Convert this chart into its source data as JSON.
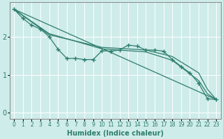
{
  "xlabel": "Humidex (Indice chaleur)",
  "bg_color": "#ceecea",
  "grid_color": "#ffffff",
  "line_color": "#2e7d6e",
  "xlim": [
    -0.5,
    23.5
  ],
  "ylim": [
    -0.15,
    2.9
  ],
  "yticks": [
    0,
    1,
    2
  ],
  "xticks": [
    0,
    1,
    2,
    3,
    4,
    5,
    6,
    7,
    8,
    9,
    10,
    11,
    12,
    13,
    14,
    15,
    16,
    17,
    18,
    19,
    20,
    21,
    22,
    23
  ],
  "series_main": {
    "x": [
      0,
      1,
      2,
      3,
      4,
      5,
      6,
      7,
      8,
      9,
      10,
      11,
      12,
      13,
      14,
      15,
      16,
      17,
      18,
      19,
      20,
      21,
      22,
      23
    ],
    "y": [
      2.72,
      2.48,
      2.3,
      2.2,
      2.0,
      1.67,
      1.43,
      1.43,
      1.4,
      1.4,
      1.63,
      1.62,
      1.65,
      1.78,
      1.75,
      1.65,
      1.65,
      1.62,
      1.4,
      1.22,
      1.05,
      0.78,
      0.37,
      0.35
    ]
  },
  "series_straight": [
    {
      "x": [
        0,
        23
      ],
      "y": [
        2.72,
        0.35
      ]
    },
    {
      "x": [
        0,
        4,
        10,
        15,
        18,
        21,
        22,
        23
      ],
      "y": [
        2.72,
        2.05,
        1.72,
        1.65,
        1.48,
        1.05,
        0.62,
        0.35
      ]
    },
    {
      "x": [
        0,
        4,
        10,
        15,
        18,
        21,
        22,
        23
      ],
      "y": [
        2.72,
        2.08,
        1.68,
        1.6,
        1.38,
        0.85,
        0.5,
        0.35
      ]
    }
  ]
}
